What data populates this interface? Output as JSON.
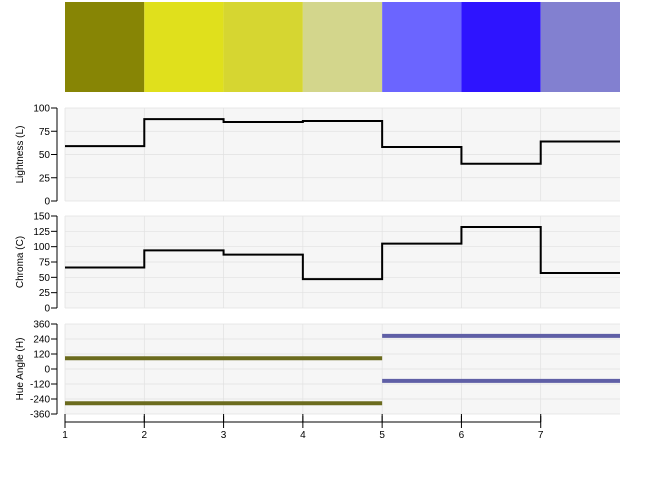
{
  "chart_data": {
    "type": "palette",
    "swatches": [
      "#878505",
      "#E0E01C",
      "#D6D631",
      "#D3D68C",
      "#6B65FF",
      "#2E14FF",
      "#8280D0"
    ],
    "x": [
      1,
      2,
      3,
      4,
      5,
      6,
      7
    ],
    "xlim": [
      1,
      8
    ],
    "xticks": [
      "1",
      "2",
      "3",
      "4",
      "5",
      "6",
      "7"
    ],
    "grid": true,
    "panels": [
      {
        "ylabel": "Lightness (L)",
        "ylim": [
          0,
          100
        ],
        "yticks": [
          "0",
          "25",
          "50",
          "75",
          "100"
        ],
        "values": [
          59,
          88,
          85,
          86,
          58,
          40,
          64
        ]
      },
      {
        "ylabel": "Chroma (C)",
        "ylim": [
          0,
          150
        ],
        "yticks": [
          "0",
          "25",
          "50",
          "75",
          "100",
          "125",
          "150"
        ],
        "values": [
          66,
          94,
          87,
          47,
          105,
          132,
          57
        ]
      },
      {
        "ylabel": "Hue Angle (H)",
        "ylim": [
          -360,
          360
        ],
        "yticks": [
          "-360",
          "-240",
          "-120",
          "0",
          "120",
          "240",
          "360"
        ],
        "hue_segments": [
          {
            "x": [
              1,
              5
            ],
            "values": [
              86,
              -274
            ],
            "color": "#6B6B1E"
          },
          {
            "x": [
              5,
              8
            ],
            "values": [
              265,
              -95
            ],
            "color": "#5F5FA6"
          }
        ]
      }
    ]
  }
}
